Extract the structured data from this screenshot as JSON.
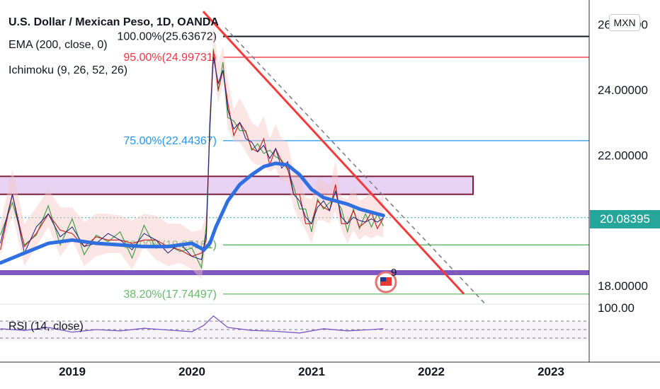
{
  "header": {
    "title": "U.S. Dollar / Mexican Peso, 1D, OANDA",
    "indicator_ema": "EMA (200, close, 0)",
    "indicator_ichimoku": "Ichimoku (9, 26, 52, 26)",
    "currency": "MXN",
    "last_price": "20.08395",
    "rsi_label": "RSI (14, close)",
    "event_badge": "9"
  },
  "colors": {
    "ema": "#2f6fdf",
    "trendline": "#f23b3b",
    "fib_100": "#131722",
    "fib_95": "#f23645",
    "fib_75": "#2196f3",
    "fib_50": "#4caf50",
    "fib_382": "#66bb6a",
    "zone_fill": "#e8d3f5",
    "zone_border": "#7b1f3a",
    "support": "#7e57c2",
    "rsi": "#7e57c2",
    "price_tag": "#26a69a"
  },
  "chart_data": {
    "type": "line",
    "title": "U.S. Dollar / Mexican Peso, 1D, OANDA",
    "x_ticks": [
      "2019",
      "2020",
      "2021",
      "2022",
      "2023"
    ],
    "y_ticks": [
      "18.00000",
      "22.00000",
      "24.00000",
      "26.00000"
    ],
    "ylim": [
      17.3,
      26.6
    ],
    "grid": false,
    "fib_levels": [
      {
        "label": "100.00%(25.63672)",
        "value": 25.63672
      },
      {
        "label": "95.00%(24.99731)",
        "value": 24.99731
      },
      {
        "label": "75.00%(22.44367)",
        "value": 22.44367
      },
      {
        "label": "50.00%(19.25161)",
        "value": 19.25161
      },
      {
        "label": "38.20%(17.74497)",
        "value": 17.74497
      }
    ],
    "resistance_zone": [
      20.8,
      21.35
    ],
    "support_level": 18.4,
    "last_price": 20.08395,
    "ema_200": {
      "x": [
        2018.4,
        2018.6,
        2018.8,
        2019.0,
        2019.2,
        2019.4,
        2019.6,
        2019.8,
        2020.0,
        2020.1,
        2020.15,
        2020.2,
        2020.3,
        2020.4,
        2020.5,
        2020.6,
        2020.7,
        2020.8,
        2020.9,
        2021.0,
        2021.1,
        2021.2,
        2021.3,
        2021.4,
        2021.5,
        2021.6
      ],
      "y": [
        18.7,
        19.0,
        19.3,
        19.4,
        19.3,
        19.25,
        19.2,
        19.2,
        19.3,
        19.1,
        19.3,
        19.8,
        20.6,
        21.1,
        21.4,
        21.65,
        21.75,
        21.7,
        21.4,
        20.95,
        20.7,
        20.6,
        20.5,
        20.35,
        20.25,
        20.15
      ]
    },
    "price": {
      "x": [
        2018.4,
        2018.5,
        2018.6,
        2018.7,
        2018.8,
        2018.9,
        2019.0,
        2019.1,
        2019.2,
        2019.3,
        2019.4,
        2019.5,
        2019.6,
        2019.7,
        2019.8,
        2019.9,
        2020.0,
        2020.08,
        2020.12,
        2020.15,
        2020.18,
        2020.22,
        2020.26,
        2020.3,
        2020.35,
        2020.4,
        2020.45,
        2020.5,
        2020.55,
        2020.6,
        2020.65,
        2020.7,
        2020.75,
        2020.8,
        2020.85,
        2020.9,
        2020.95,
        2021.0,
        2021.05,
        2021.1,
        2021.15,
        2021.2,
        2021.25,
        2021.3,
        2021.35,
        2021.4,
        2021.45,
        2021.5,
        2021.55,
        2021.6
      ],
      "y": [
        19.3,
        20.8,
        19.0,
        19.8,
        20.2,
        19.5,
        19.8,
        19.2,
        19.3,
        19.6,
        19.4,
        19.1,
        19.6,
        19.4,
        19.0,
        19.3,
        18.9,
        18.8,
        19.6,
        23.0,
        25.0,
        24.2,
        24.6,
        23.4,
        22.8,
        23.0,
        22.5,
        22.4,
        22.1,
        22.3,
        21.9,
        22.2,
        21.6,
        21.8,
        20.8,
        20.6,
        20.1,
        19.9,
        20.4,
        20.6,
        20.3,
        20.9,
        20.1,
        19.9,
        20.1,
        20.0,
        19.95,
        20.05,
        19.95,
        20.08
      ]
    },
    "rsi": {
      "x": [
        2018.4,
        2018.6,
        2018.8,
        2019.0,
        2019.2,
        2019.4,
        2019.6,
        2019.8,
        2020.0,
        2020.1,
        2020.18,
        2020.3,
        2020.5,
        2020.7,
        2020.9,
        2021.1,
        2021.3,
        2021.5,
        2021.6
      ],
      "y": [
        52,
        48,
        55,
        44,
        50,
        47,
        53,
        49,
        45,
        60,
        82,
        55,
        48,
        46,
        42,
        52,
        47,
        50,
        52
      ]
    },
    "rsi_levels": [
      30,
      50,
      70
    ]
  }
}
